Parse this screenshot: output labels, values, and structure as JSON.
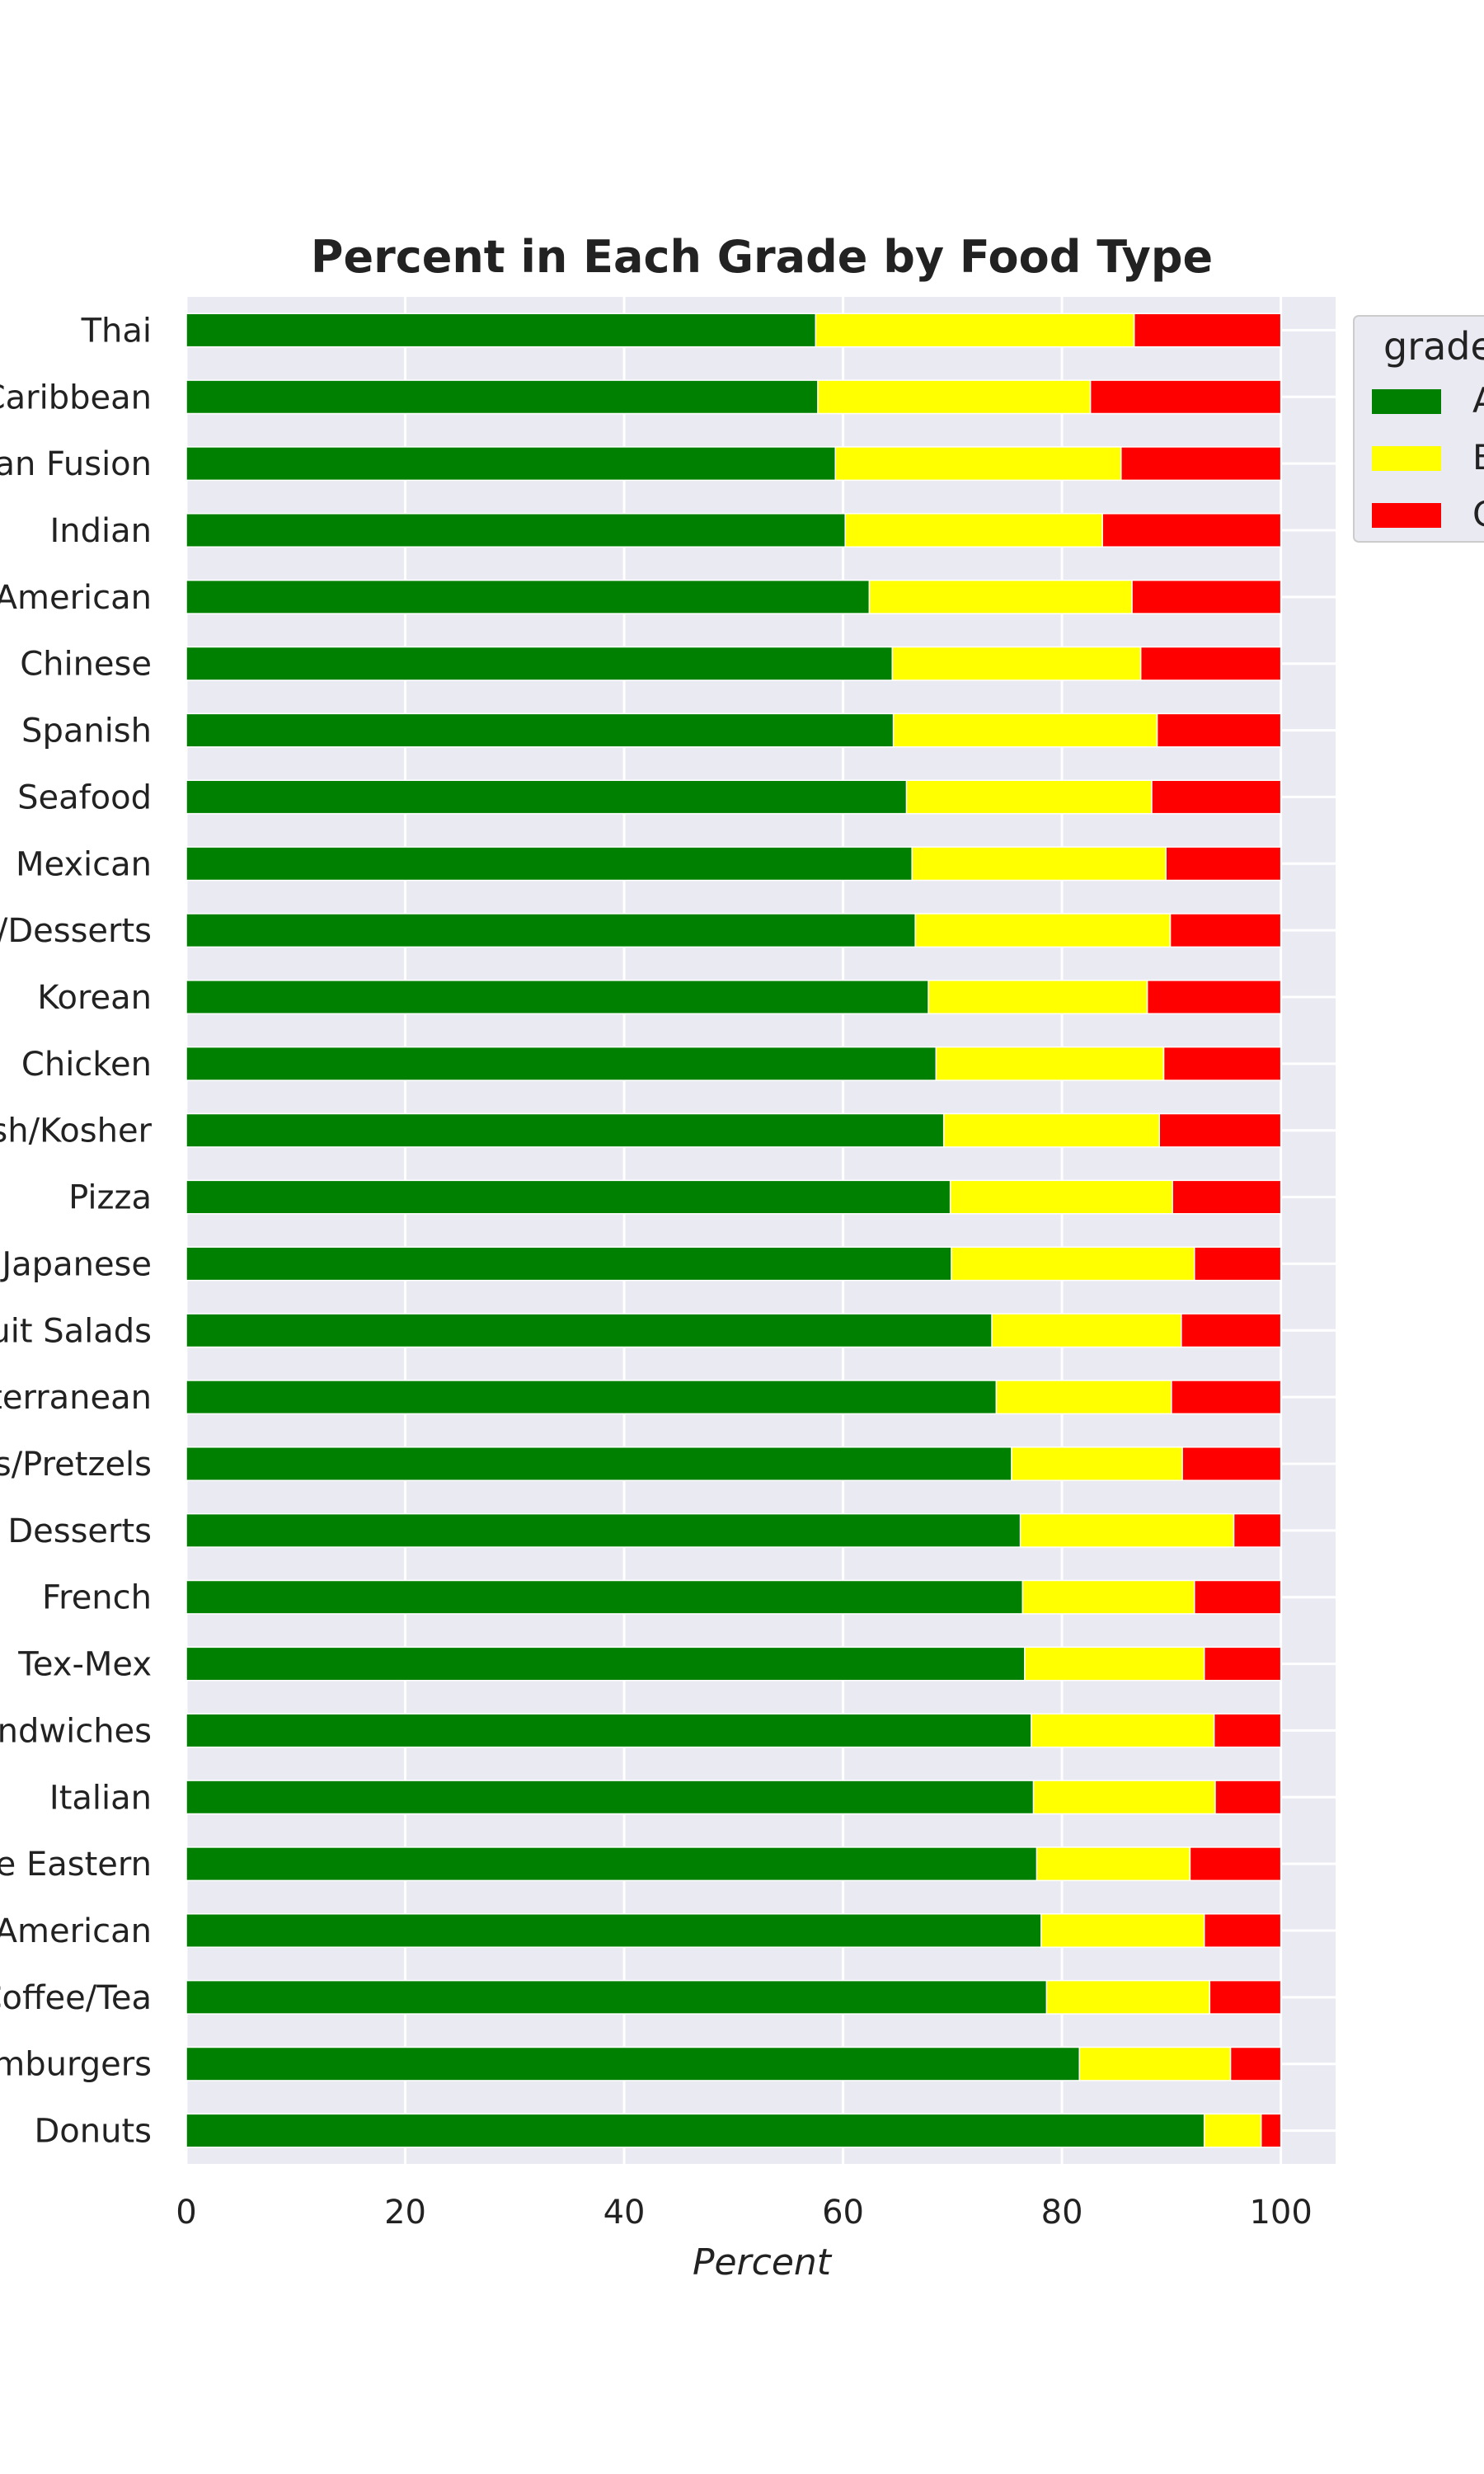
{
  "chart_data": {
    "type": "bar",
    "orientation": "horizontal",
    "stacked": true,
    "title": "Percent in Each Grade by Food Type",
    "xlabel": "Percent",
    "ylabel": "",
    "xlim": [
      0,
      105
    ],
    "xticks": [
      0,
      20,
      40,
      60,
      80,
      100
    ],
    "grid": true,
    "legend": {
      "title": "grade",
      "placement": "outside-top-right",
      "entries": [
        "A",
        "B",
        "C"
      ]
    },
    "categories": [
      "Thai",
      "Caribbean",
      "Asian Fusion",
      "Indian",
      "Latin American",
      "Chinese",
      "Spanish",
      "Seafood",
      "Mexican",
      "Bakery/Desserts",
      "Korean",
      "Chicken",
      "Jewish/Kosher",
      "Pizza",
      "Japanese",
      "Fruit Salads",
      "Mediterranean",
      "Bagels/Pretzels",
      "Frozen Desserts",
      "French",
      "Tex-Mex",
      "Sandwiches",
      "Italian",
      "Middle Eastern",
      "American",
      "Coffee/Tea",
      "Hamburgers",
      "Donuts"
    ],
    "series": [
      {
        "name": "A",
        "color": "#008000",
        "values": [
          57.5,
          57.7,
          59.3,
          60.2,
          62.4,
          64.5,
          64.6,
          65.8,
          66.3,
          66.6,
          67.8,
          68.5,
          69.2,
          69.8,
          69.9,
          73.6,
          74.0,
          75.4,
          76.2,
          76.4,
          76.6,
          77.2,
          77.4,
          77.7,
          78.1,
          78.6,
          81.6,
          93.0
        ]
      },
      {
        "name": "B",
        "color": "#ffff00",
        "values": [
          29.1,
          24.9,
          26.1,
          23.5,
          24.0,
          22.7,
          24.1,
          22.4,
          23.2,
          23.3,
          20.0,
          20.8,
          19.7,
          20.3,
          22.2,
          17.3,
          16.0,
          15.6,
          19.5,
          15.7,
          16.4,
          16.7,
          16.6,
          14.0,
          14.9,
          14.9,
          13.8,
          5.2
        ]
      },
      {
        "name": "C",
        "color": "#ff0000",
        "values": [
          13.4,
          17.4,
          14.6,
          16.3,
          13.6,
          12.8,
          11.3,
          11.8,
          10.5,
          10.1,
          12.2,
          10.7,
          11.1,
          9.9,
          7.9,
          9.1,
          10.0,
          9.0,
          4.3,
          7.9,
          7.0,
          6.1,
          6.0,
          8.3,
          7.0,
          6.5,
          4.6,
          1.8
        ]
      }
    ]
  }
}
